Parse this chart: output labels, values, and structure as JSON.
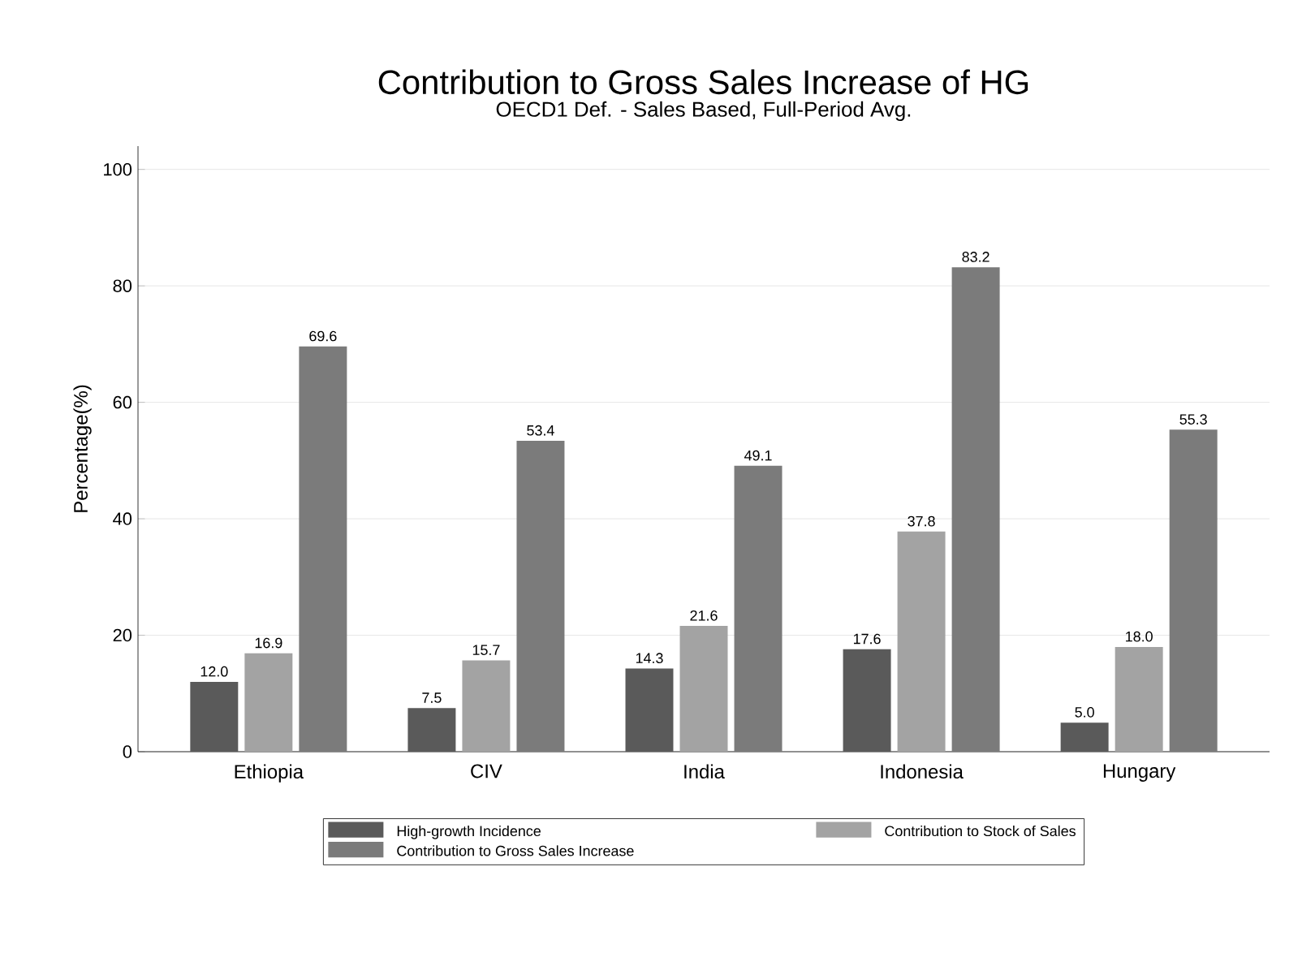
{
  "chart_data": {
    "type": "bar",
    "title": "Contribution to Gross Sales Increase of HG",
    "subtitle": "OECD1 Def. - Sales Based, Full-Period Avg.",
    "ylabel": "Percentage(%)",
    "categories": [
      "Ethiopia",
      "CIV",
      "India",
      "Indonesia",
      "Hungary"
    ],
    "series": [
      {
        "name": "High-growth Incidence",
        "color": "#5a5a5a",
        "values": [
          12.0,
          7.5,
          14.3,
          17.6,
          5.0
        ],
        "value_labels": [
          "12.0",
          "7.5",
          "14.3",
          "17.6",
          "5.0"
        ]
      },
      {
        "name": "Contribution to Stock of Sales",
        "color": "#a3a3a3",
        "values": [
          16.9,
          15.7,
          21.6,
          37.8,
          18.0
        ],
        "value_labels": [
          "16.9",
          "15.7",
          "21.6",
          "37.8",
          "18.0"
        ]
      },
      {
        "name": "Contribution to Gross Sales Increase",
        "color": "#7b7b7b",
        "values": [
          69.6,
          53.4,
          49.1,
          83.2,
          55.3
        ],
        "value_labels": [
          "69.6",
          "53.4",
          "49.1",
          "83.2",
          "55.3"
        ]
      }
    ],
    "ylim": [
      0,
      104
    ],
    "yticks": [
      0,
      20,
      40,
      60,
      80,
      100
    ],
    "grid": "y",
    "legend": "bottom"
  }
}
